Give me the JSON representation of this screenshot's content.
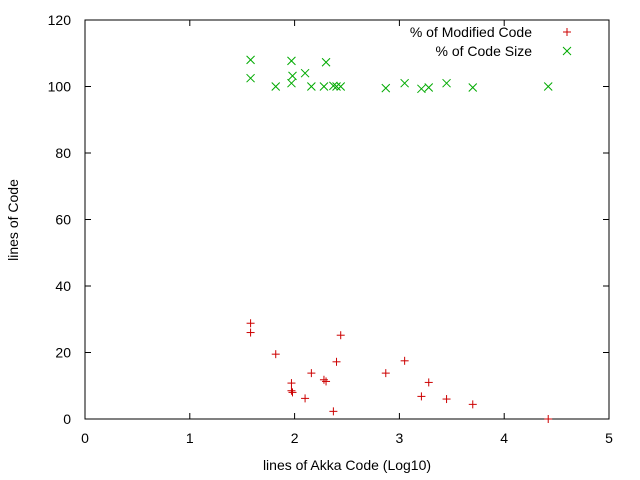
{
  "chart_data": {
    "type": "scatter",
    "title": "",
    "xlabel": "lines of Akka Code (Log10)",
    "ylabel": "lines of Code",
    "xlim": [
      0,
      5
    ],
    "ylim": [
      0,
      120
    ],
    "x_ticks": [
      0,
      1,
      2,
      3,
      4,
      5
    ],
    "y_ticks": [
      0,
      20,
      40,
      60,
      80,
      100,
      120
    ],
    "x_tick_labels": [
      "0",
      "1",
      "2",
      "3",
      "4",
      "5"
    ],
    "y_tick_labels": [
      "0",
      "20",
      "40",
      "60",
      "80",
      "100",
      "120"
    ],
    "grid": false,
    "legend_position": "top-right",
    "series": [
      {
        "name": "% of Modified Code",
        "marker": "plus",
        "color": "#cc0000",
        "points": [
          [
            1.58,
            28.8
          ],
          [
            1.58,
            26.0
          ],
          [
            1.82,
            19.5
          ],
          [
            1.97,
            10.8
          ],
          [
            1.97,
            8.5
          ],
          [
            1.98,
            8.0
          ],
          [
            2.1,
            6.2
          ],
          [
            2.16,
            13.8
          ],
          [
            2.28,
            11.8
          ],
          [
            2.3,
            11.3
          ],
          [
            2.37,
            2.3
          ],
          [
            2.4,
            17.2
          ],
          [
            2.44,
            25.2
          ],
          [
            2.87,
            13.8
          ],
          [
            3.05,
            17.5
          ],
          [
            3.21,
            6.8
          ],
          [
            3.28,
            11.0
          ],
          [
            3.45,
            6.0
          ],
          [
            3.7,
            4.4
          ],
          [
            4.42,
            0.0
          ]
        ]
      },
      {
        "name": "% of Code Size",
        "marker": "cross",
        "color": "#00aa00",
        "points": [
          [
            1.58,
            108.0
          ],
          [
            1.58,
            102.5
          ],
          [
            1.82,
            100.0
          ],
          [
            1.97,
            107.7
          ],
          [
            1.97,
            101.0
          ],
          [
            1.98,
            103.2
          ],
          [
            2.1,
            104.0
          ],
          [
            2.16,
            100.0
          ],
          [
            2.28,
            100.0
          ],
          [
            2.3,
            107.3
          ],
          [
            2.37,
            100.2
          ],
          [
            2.4,
            100.0
          ],
          [
            2.44,
            100.0
          ],
          [
            2.87,
            99.5
          ],
          [
            3.05,
            101.0
          ],
          [
            3.21,
            99.3
          ],
          [
            3.28,
            99.7
          ],
          [
            3.45,
            101.0
          ],
          [
            3.7,
            99.7
          ],
          [
            4.42,
            100.0
          ]
        ]
      }
    ]
  }
}
